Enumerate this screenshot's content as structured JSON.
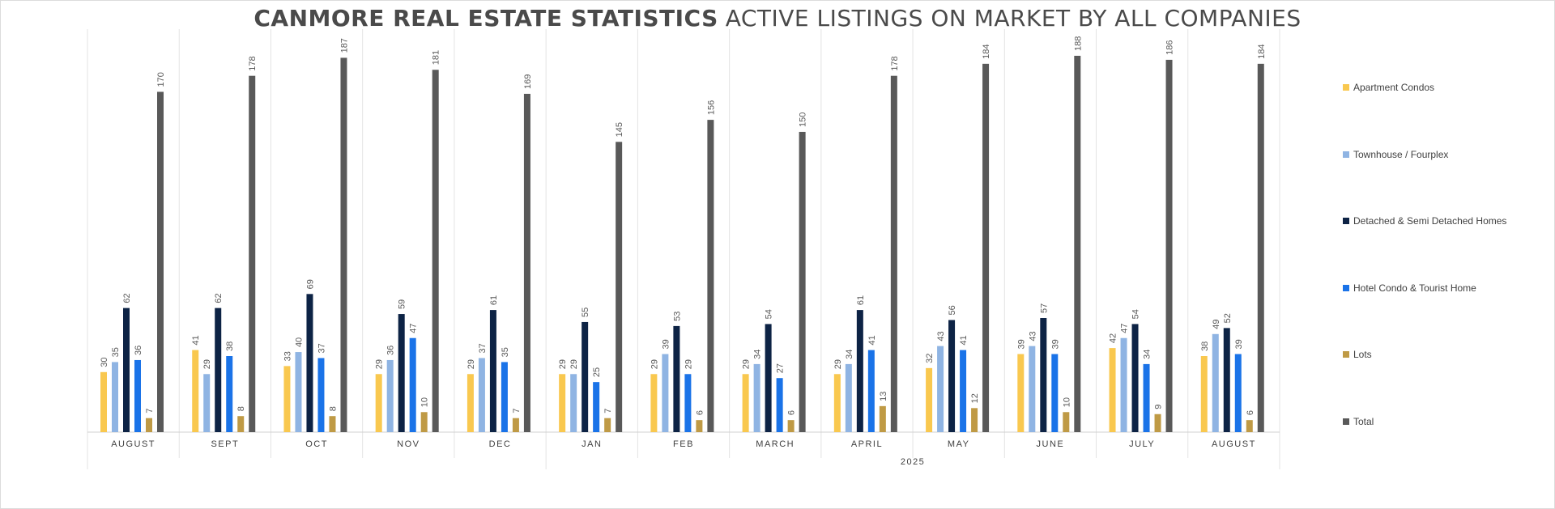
{
  "chart_data": {
    "type": "bar",
    "title": "CANMORE REAL ESTATE STATISTICS",
    "subtitle": "ACTIVE LISTINGS ON MARKET BY ALL COMPANIES",
    "categories": [
      "AUGUST",
      "SEPT",
      "OCT",
      "NOV",
      "DEC",
      "JAN",
      "FEB",
      "MARCH",
      "APRIL",
      "MAY",
      "JUNE",
      "JULY",
      "AUGUST"
    ],
    "year_group": {
      "label": "2025",
      "start_index": 5,
      "end_index": 12
    },
    "series": [
      {
        "name": "Apartment Condos",
        "color": "#f9c84f",
        "values": [
          30,
          41,
          33,
          29,
          29,
          29,
          29,
          29,
          29,
          32,
          39,
          42,
          38
        ]
      },
      {
        "name": "Townhouse / Fourplex",
        "color": "#8fb4e3",
        "values": [
          35,
          29,
          40,
          36,
          37,
          29,
          39,
          34,
          34,
          43,
          43,
          47,
          49
        ]
      },
      {
        "name": "Detached & Semi Detached Homes",
        "color": "#0d2345",
        "values": [
          62,
          62,
          69,
          59,
          61,
          55,
          53,
          54,
          61,
          56,
          57,
          54,
          52
        ]
      },
      {
        "name": "Hotel Condo & Tourist Home",
        "color": "#1a73e8",
        "values": [
          36,
          38,
          37,
          47,
          35,
          25,
          29,
          27,
          41,
          41,
          39,
          34,
          39
        ]
      },
      {
        "name": "Lots",
        "color": "#bf9a45",
        "values": [
          7,
          8,
          8,
          10,
          7,
          7,
          6,
          6,
          13,
          12,
          10,
          9,
          6
        ]
      },
      {
        "name": "Total",
        "color": "#595959",
        "values": [
          170,
          178,
          187,
          181,
          169,
          145,
          156,
          150,
          178,
          184,
          188,
          186,
          184
        ]
      }
    ],
    "ylim": [
      0,
      190
    ],
    "grid": "vertical category separators",
    "legend_position": "right"
  }
}
